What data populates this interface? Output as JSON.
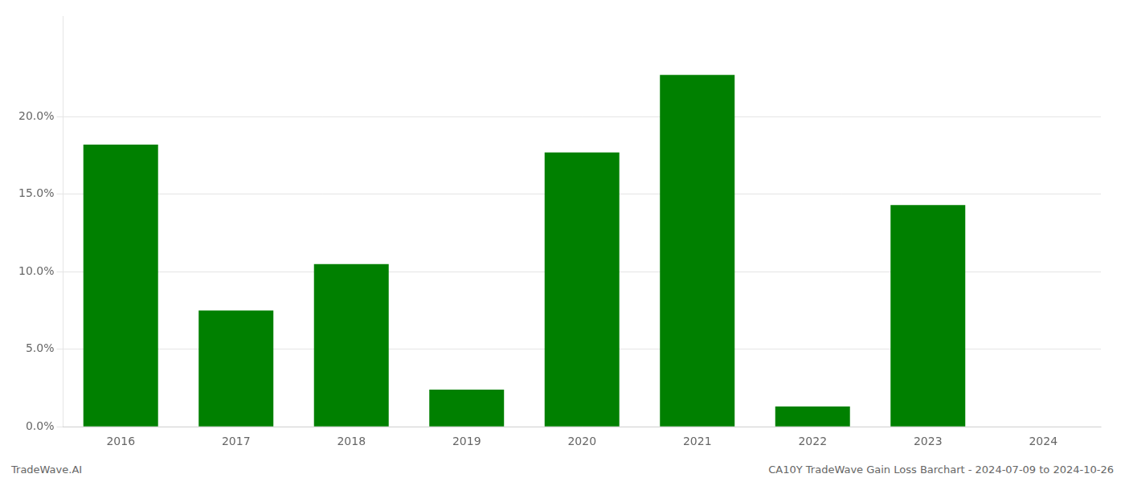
{
  "chart_data": {
    "type": "bar",
    "categories": [
      "2016",
      "2017",
      "2018",
      "2019",
      "2020",
      "2021",
      "2022",
      "2023",
      "2024"
    ],
    "values": [
      0.182,
      0.075,
      0.105,
      0.024,
      0.177,
      0.227,
      0.013,
      0.143,
      0.0
    ],
    "color": "#008000",
    "ylim": [
      0,
      0.265
    ],
    "yticks": [
      {
        "value": 0.0,
        "label": "0.0%"
      },
      {
        "value": 0.05,
        "label": "5.0%"
      },
      {
        "value": 0.1,
        "label": "10.0%"
      },
      {
        "value": 0.15,
        "label": "15.0%"
      },
      {
        "value": 0.2,
        "label": "20.0%"
      }
    ],
    "grid": true,
    "annotations": [
      "TradeWave.AI",
      "CA10Y TradeWave Gain Loss Barchart - 2024-07-09 to 2024-10-26"
    ]
  }
}
